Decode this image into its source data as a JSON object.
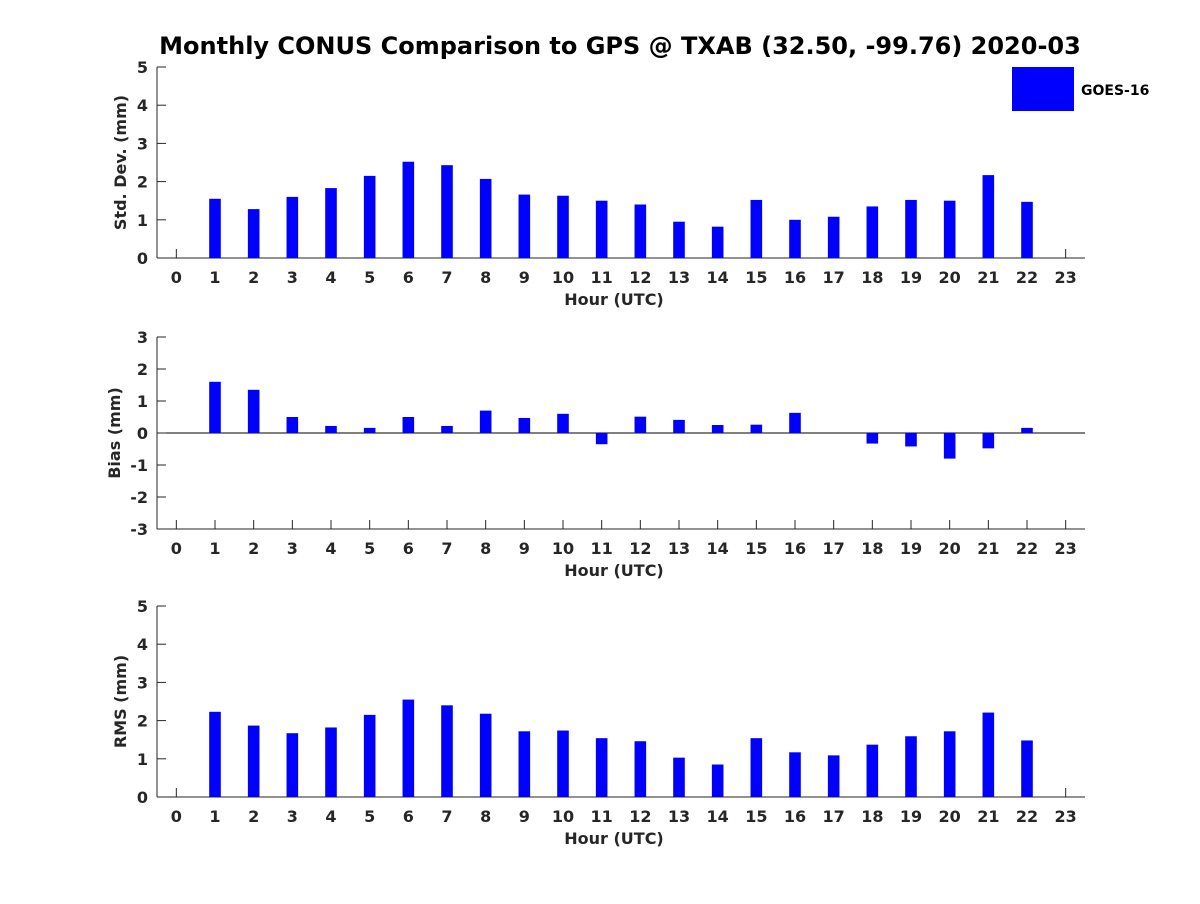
{
  "chart_data": {
    "title": "Monthly CONUS Comparison to GPS @ TXAB (32.50, -99.76) 2020-03",
    "type": "bar",
    "bar_color": "#0000ff",
    "axis_color": "#262626",
    "legend": {
      "placement": "top-right",
      "entries": [
        "GOES-16"
      ]
    },
    "xlabel": "Hour (UTC)",
    "x_ticks": [
      0,
      1,
      2,
      3,
      4,
      5,
      6,
      7,
      8,
      9,
      10,
      11,
      12,
      13,
      14,
      15,
      16,
      17,
      18,
      19,
      20,
      21,
      22,
      23
    ],
    "panels": [
      {
        "id": "std",
        "ylabel": "Std. Dev. (mm)",
        "ylim": [
          0,
          5
        ],
        "yticks": [
          0,
          1,
          2,
          3,
          4,
          5
        ],
        "series": [
          {
            "name": "GOES-16",
            "values": [
              null,
              1.55,
              1.28,
              1.6,
              1.83,
              2.15,
              2.52,
              2.43,
              2.07,
              1.66,
              1.63,
              1.5,
              1.4,
              0.95,
              0.82,
              1.52,
              1.0,
              1.08,
              1.35,
              1.52,
              1.5,
              2.17,
              1.47,
              null
            ]
          }
        ]
      },
      {
        "id": "bias",
        "ylabel": "Bias (mm)",
        "ylim": [
          -3,
          3
        ],
        "yticks": [
          -3,
          -2,
          -1,
          0,
          1,
          2,
          3
        ],
        "series": [
          {
            "name": "GOES-16",
            "values": [
              null,
              1.6,
              1.35,
              0.5,
              0.22,
              0.16,
              0.5,
              0.22,
              0.7,
              0.47,
              0.6,
              -0.35,
              0.51,
              0.41,
              0.25,
              0.26,
              0.63,
              null,
              -0.33,
              -0.42,
              -0.8,
              -0.48,
              0.16,
              null
            ]
          }
        ]
      },
      {
        "id": "rms",
        "ylabel": "RMS (mm)",
        "ylim": [
          0,
          5
        ],
        "yticks": [
          0,
          1,
          2,
          3,
          4,
          5
        ],
        "series": [
          {
            "name": "GOES-16",
            "values": [
              null,
              2.23,
              1.87,
              1.67,
              1.82,
              2.15,
              2.55,
              2.4,
              2.18,
              1.72,
              1.74,
              1.54,
              1.46,
              1.03,
              0.85,
              1.54,
              1.17,
              1.09,
              1.37,
              1.59,
              1.72,
              2.21,
              1.48,
              null
            ]
          }
        ]
      }
    ]
  }
}
